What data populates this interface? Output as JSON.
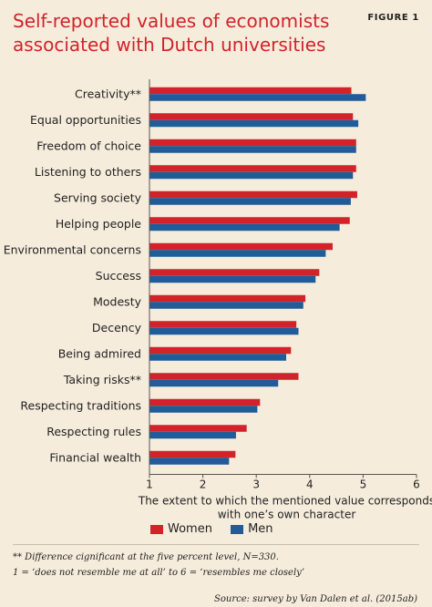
{
  "figure": {
    "title": "Self-reported values of economists associated with Dutch universities",
    "label": "FIGURE 1",
    "note_1": "** Difference cignificant at the five percent level, N=330.",
    "note_2": "1 = ‘does not resemble me at all’ to 6 = ‘resembles me closely’",
    "source": "Source: survey by Van Dalen et al. (2015ab)"
  },
  "colors": {
    "women": "#d2232a",
    "men": "#1f5c99",
    "background": "#f6ecdc"
  },
  "chart_data": {
    "type": "bar",
    "orientation": "horizontal",
    "categories": [
      "Creativity**",
      "Equal opportunities",
      "Freedom of choice",
      "Listening to others",
      "Serving society",
      "Helping people",
      "Environmental concerns",
      "Success",
      "Modesty",
      "Decency",
      "Being admired",
      "Taking risks**",
      "Respecting traditions",
      "Respecting rules",
      "Financial wealth"
    ],
    "series": [
      {
        "name": "Women",
        "values": [
          4.78,
          4.81,
          4.87,
          4.87,
          4.89,
          4.75,
          4.43,
          4.18,
          3.92,
          3.75,
          3.65,
          3.79,
          3.07,
          2.82,
          2.61
        ]
      },
      {
        "name": "Men",
        "values": [
          5.05,
          4.91,
          4.87,
          4.81,
          4.77,
          4.56,
          4.3,
          4.11,
          3.88,
          3.79,
          3.56,
          3.41,
          3.02,
          2.62,
          2.49
        ]
      }
    ],
    "xlabel": "The extent to which the mentioned value corresponds with one’s own character",
    "xlabel_lines": [
      "The extent to which the mentioned value corresponds",
      "with one’s own character"
    ],
    "xticks": [
      1,
      2,
      3,
      4,
      5,
      6
    ],
    "xlim": [
      1,
      6
    ],
    "legend_position": "bottom-left",
    "grid": false
  }
}
